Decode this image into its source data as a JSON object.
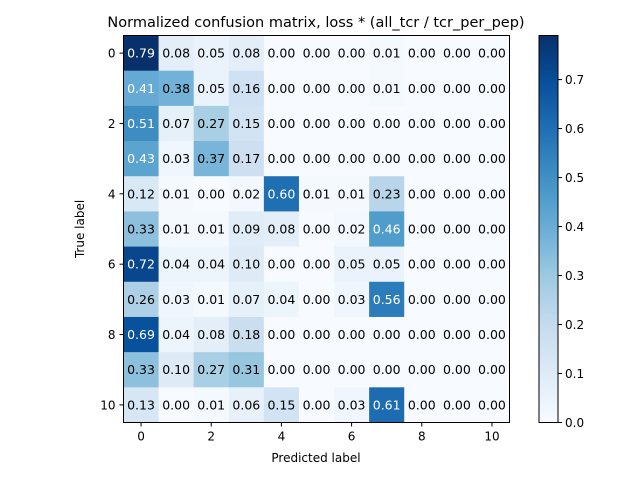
{
  "chart_data": {
    "type": "heatmap",
    "title": "Normalized confusion matrix, loss * (all_tcr / tcr_per_pep)",
    "xlabel": "Predicted label",
    "ylabel": "True label",
    "x_ticks": [
      0,
      2,
      4,
      6,
      8,
      10
    ],
    "y_ticks": [
      0,
      2,
      4,
      6,
      8,
      10
    ],
    "matrix": [
      [
        0.79,
        0.08,
        0.05,
        0.08,
        0.0,
        0.0,
        0.0,
        0.01,
        0.0,
        0.0,
        0.0
      ],
      [
        0.41,
        0.38,
        0.05,
        0.16,
        0.0,
        0.0,
        0.0,
        0.01,
        0.0,
        0.0,
        0.0
      ],
      [
        0.51,
        0.07,
        0.27,
        0.15,
        0.0,
        0.0,
        0.0,
        0.0,
        0.0,
        0.0,
        0.0
      ],
      [
        0.43,
        0.03,
        0.37,
        0.17,
        0.0,
        0.0,
        0.0,
        0.0,
        0.0,
        0.0,
        0.0
      ],
      [
        0.12,
        0.01,
        0.0,
        0.02,
        0.6,
        0.01,
        0.01,
        0.23,
        0.0,
        0.0,
        0.0
      ],
      [
        0.33,
        0.01,
        0.01,
        0.09,
        0.08,
        0.0,
        0.02,
        0.46,
        0.0,
        0.0,
        0.0
      ],
      [
        0.72,
        0.04,
        0.04,
        0.1,
        0.0,
        0.0,
        0.05,
        0.05,
        0.0,
        0.0,
        0.0
      ],
      [
        0.26,
        0.03,
        0.01,
        0.07,
        0.04,
        0.0,
        0.03,
        0.56,
        0.0,
        0.0,
        0.0
      ],
      [
        0.69,
        0.04,
        0.08,
        0.18,
        0.0,
        0.0,
        0.0,
        0.0,
        0.0,
        0.0,
        0.0
      ],
      [
        0.33,
        0.1,
        0.27,
        0.31,
        0.0,
        0.0,
        0.0,
        0.0,
        0.0,
        0.0,
        0.0
      ],
      [
        0.13,
        0.0,
        0.01,
        0.06,
        0.15,
        0.0,
        0.03,
        0.61,
        0.0,
        0.0,
        0.0
      ]
    ],
    "value_format": "2 decimals",
    "vmin": 0.0,
    "vmax": 0.79,
    "colormap": "Blues",
    "colorbar_ticks": [
      0.0,
      0.1,
      0.2,
      0.3,
      0.4,
      0.5,
      0.6,
      0.7
    ],
    "text_color_dark": "#000000",
    "text_color_light": "#ffffff",
    "grid": false
  }
}
